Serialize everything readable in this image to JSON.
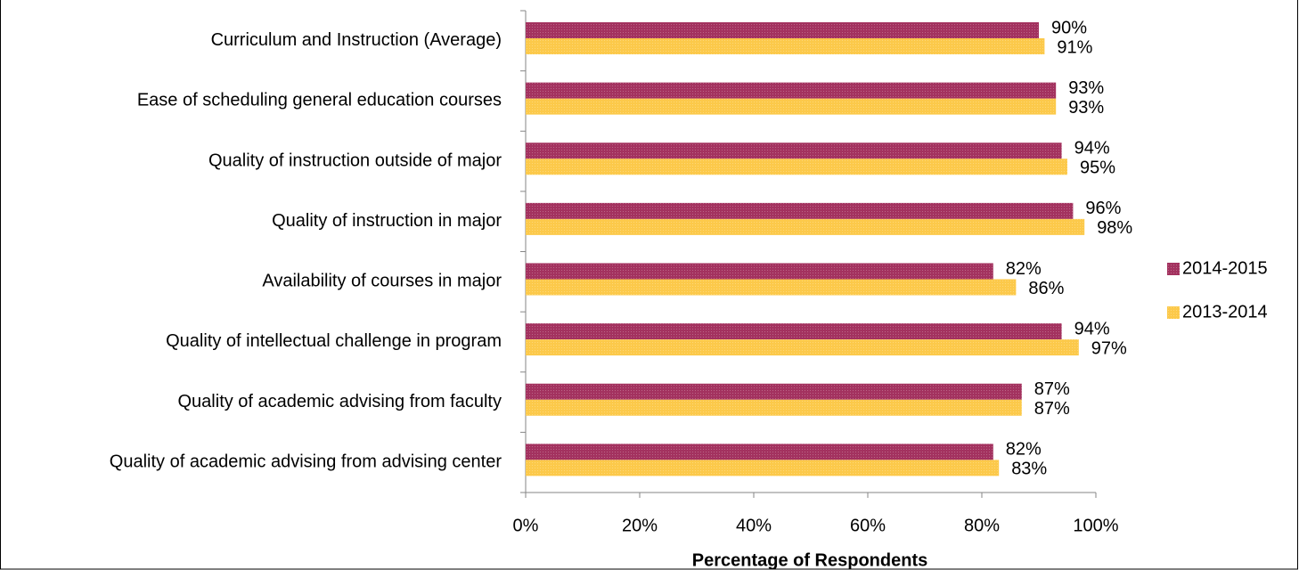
{
  "chart_data": {
    "type": "bar",
    "orientation": "horizontal",
    "x_label": "Percentage of Respondents",
    "categories": [
      "Curriculum and Instruction (Average)",
      "Ease of scheduling general education courses",
      "Quality of instruction outside of major",
      "Quality of instruction in major",
      "Availability of courses in major",
      "Quality of intellectual challenge in program",
      "Quality of academic advising from faculty",
      "Quality of academic advising from advising center"
    ],
    "series": [
      {
        "name": "2014-2015",
        "color": "#a3325f",
        "values": [
          90,
          93,
          94,
          96,
          82,
          94,
          87,
          82
        ],
        "value_labels": [
          "90%",
          "93%",
          "94%",
          "96%",
          "82%",
          "94%",
          "87%",
          "82%"
        ]
      },
      {
        "name": "2013-2014",
        "color": "#fcc94a",
        "values": [
          91,
          93,
          95,
          98,
          86,
          97,
          87,
          83
        ],
        "value_labels": [
          "91%",
          "93%",
          "95%",
          "98%",
          "86%",
          "97%",
          "87%",
          "83%"
        ]
      }
    ],
    "xlim": [
      0,
      100
    ],
    "xticks": [
      {
        "value": 0,
        "label": "0%"
      },
      {
        "value": 20,
        "label": "20%"
      },
      {
        "value": 40,
        "label": "40%"
      },
      {
        "value": 60,
        "label": "60%"
      },
      {
        "value": 80,
        "label": "80%"
      },
      {
        "value": 100,
        "label": "100%"
      }
    ],
    "legend": "right"
  }
}
